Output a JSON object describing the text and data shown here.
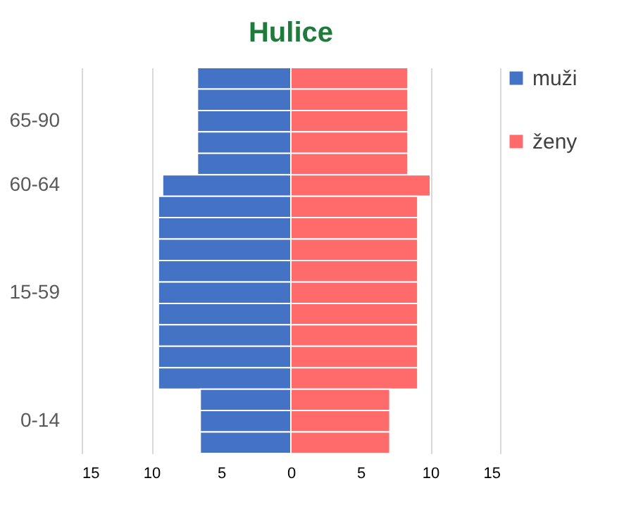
{
  "chart_data": {
    "type": "bar",
    "title": "Hulice",
    "orientation": "horizontal",
    "stacked": true,
    "categories": [
      null,
      null,
      "65-90",
      null,
      null,
      "60-64",
      null,
      null,
      null,
      null,
      "15-59",
      null,
      null,
      null,
      null,
      null,
      "0-14",
      null
    ],
    "series": [
      {
        "name": "muži",
        "color": "#4472c4",
        "values": [
          -6.7,
          -6.7,
          -6.7,
          -6.7,
          -6.7,
          -9.2,
          -9.5,
          -9.5,
          -9.5,
          -9.5,
          -9.5,
          -9.5,
          -9.5,
          -9.5,
          -9.5,
          -6.5,
          -6.5,
          -6.5
        ]
      },
      {
        "name": "ženy",
        "color": "#ff6b6b",
        "values": [
          8.4,
          8.4,
          8.4,
          8.4,
          8.4,
          10.0,
          9.1,
          9.1,
          9.1,
          9.1,
          9.1,
          9.1,
          9.1,
          9.1,
          9.1,
          7.1,
          7.1,
          7.1
        ]
      }
    ],
    "xlim": [
      -15,
      15
    ],
    "xticks": [
      {
        "value": -15,
        "label": "15"
      },
      {
        "value": -10,
        "label": "10"
      },
      {
        "value": -5,
        "label": "5"
      },
      0,
      5,
      10,
      15
    ],
    "grid": "x",
    "legend": "right"
  }
}
